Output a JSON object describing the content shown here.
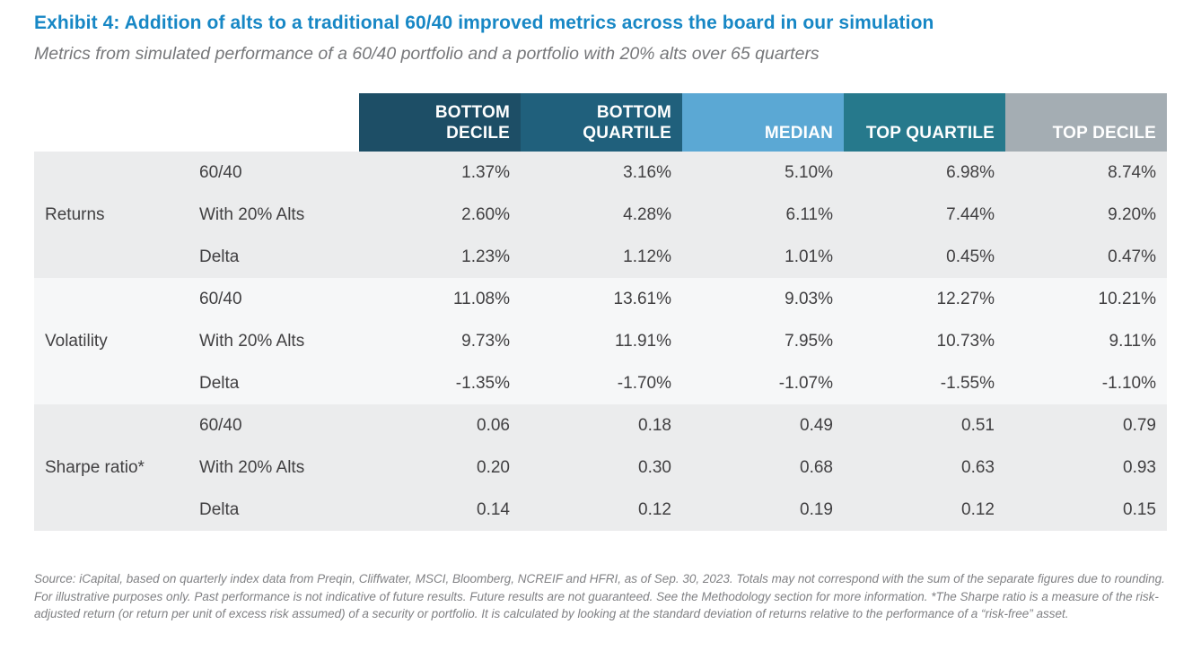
{
  "colors": {
    "title_blue": "#1787c5",
    "subtitle_gray": "#76777a",
    "body_text": "#414042",
    "footnote_gray": "#808184",
    "header_bottom_decile": "#1d4e66",
    "header_bottom_quartile": "#20607c",
    "header_median": "#5ba8d4",
    "header_top_quartile": "#26798c",
    "header_top_decile": "#a4adb3",
    "band_gray": "#ebeced",
    "band_light": "#f6f7f8"
  },
  "chart_data": {
    "type": "table",
    "title": "Exhibit 4: Addition of alts to a traditional 60/40 improved metrics across the board in our simulation",
    "subtitle": "Metrics from simulated performance of a 60/40 portfolio and a portfolio with 20% alts over 65 quarters",
    "columns": [
      "BOTTOM DECILE",
      "BOTTOM QUARTILE",
      "MEDIAN",
      "TOP QUARTILE",
      "TOP DECILE"
    ],
    "groups": [
      {
        "label": "Returns",
        "rows": [
          {
            "label": "60/40",
            "values": [
              "1.37%",
              "3.16%",
              "5.10%",
              "6.98%",
              "8.74%"
            ]
          },
          {
            "label": "With 20% Alts",
            "values": [
              "2.60%",
              "4.28%",
              "6.11%",
              "7.44%",
              "9.20%"
            ]
          },
          {
            "label": "Delta",
            "values": [
              "1.23%",
              "1.12%",
              "1.01%",
              "0.45%",
              "0.47%"
            ]
          }
        ]
      },
      {
        "label": "Volatility",
        "rows": [
          {
            "label": "60/40",
            "values": [
              "11.08%",
              "13.61%",
              "9.03%",
              "12.27%",
              "10.21%"
            ]
          },
          {
            "label": "With 20% Alts",
            "values": [
              "9.73%",
              "11.91%",
              "7.95%",
              "10.73%",
              "9.11%"
            ]
          },
          {
            "label": "Delta",
            "values": [
              "-1.35%",
              "-1.70%",
              "-1.07%",
              "-1.55%",
              "-1.10%"
            ]
          }
        ]
      },
      {
        "label": "Sharpe ratio*",
        "rows": [
          {
            "label": "60/40",
            "values": [
              "0.06",
              "0.18",
              "0.49",
              "0.51",
              "0.79"
            ]
          },
          {
            "label": "With 20% Alts",
            "values": [
              "0.20",
              "0.30",
              "0.68",
              "0.63",
              "0.93"
            ]
          },
          {
            "label": "Delta",
            "values": [
              "0.14",
              "0.12",
              "0.19",
              "0.12",
              "0.15"
            ]
          }
        ]
      }
    ]
  },
  "footnote": "Source: iCapital, based on quarterly index data from Preqin, Cliffwater, MSCI, Bloomberg, NCREIF and HFRI, as of Sep. 30, 2023. Totals may not correspond with the sum of the separate figures due to rounding. For illustrative purposes only. Past performance is not indicative of future results. Future results are not guaranteed. See the Methodology section for more information. *The Sharpe ratio is a measure of the risk-adjusted return (or return per unit of excess risk assumed) of a security or portfolio. It is calculated by looking at the standard deviation of returns relative to the performance of a “risk-free” asset."
}
